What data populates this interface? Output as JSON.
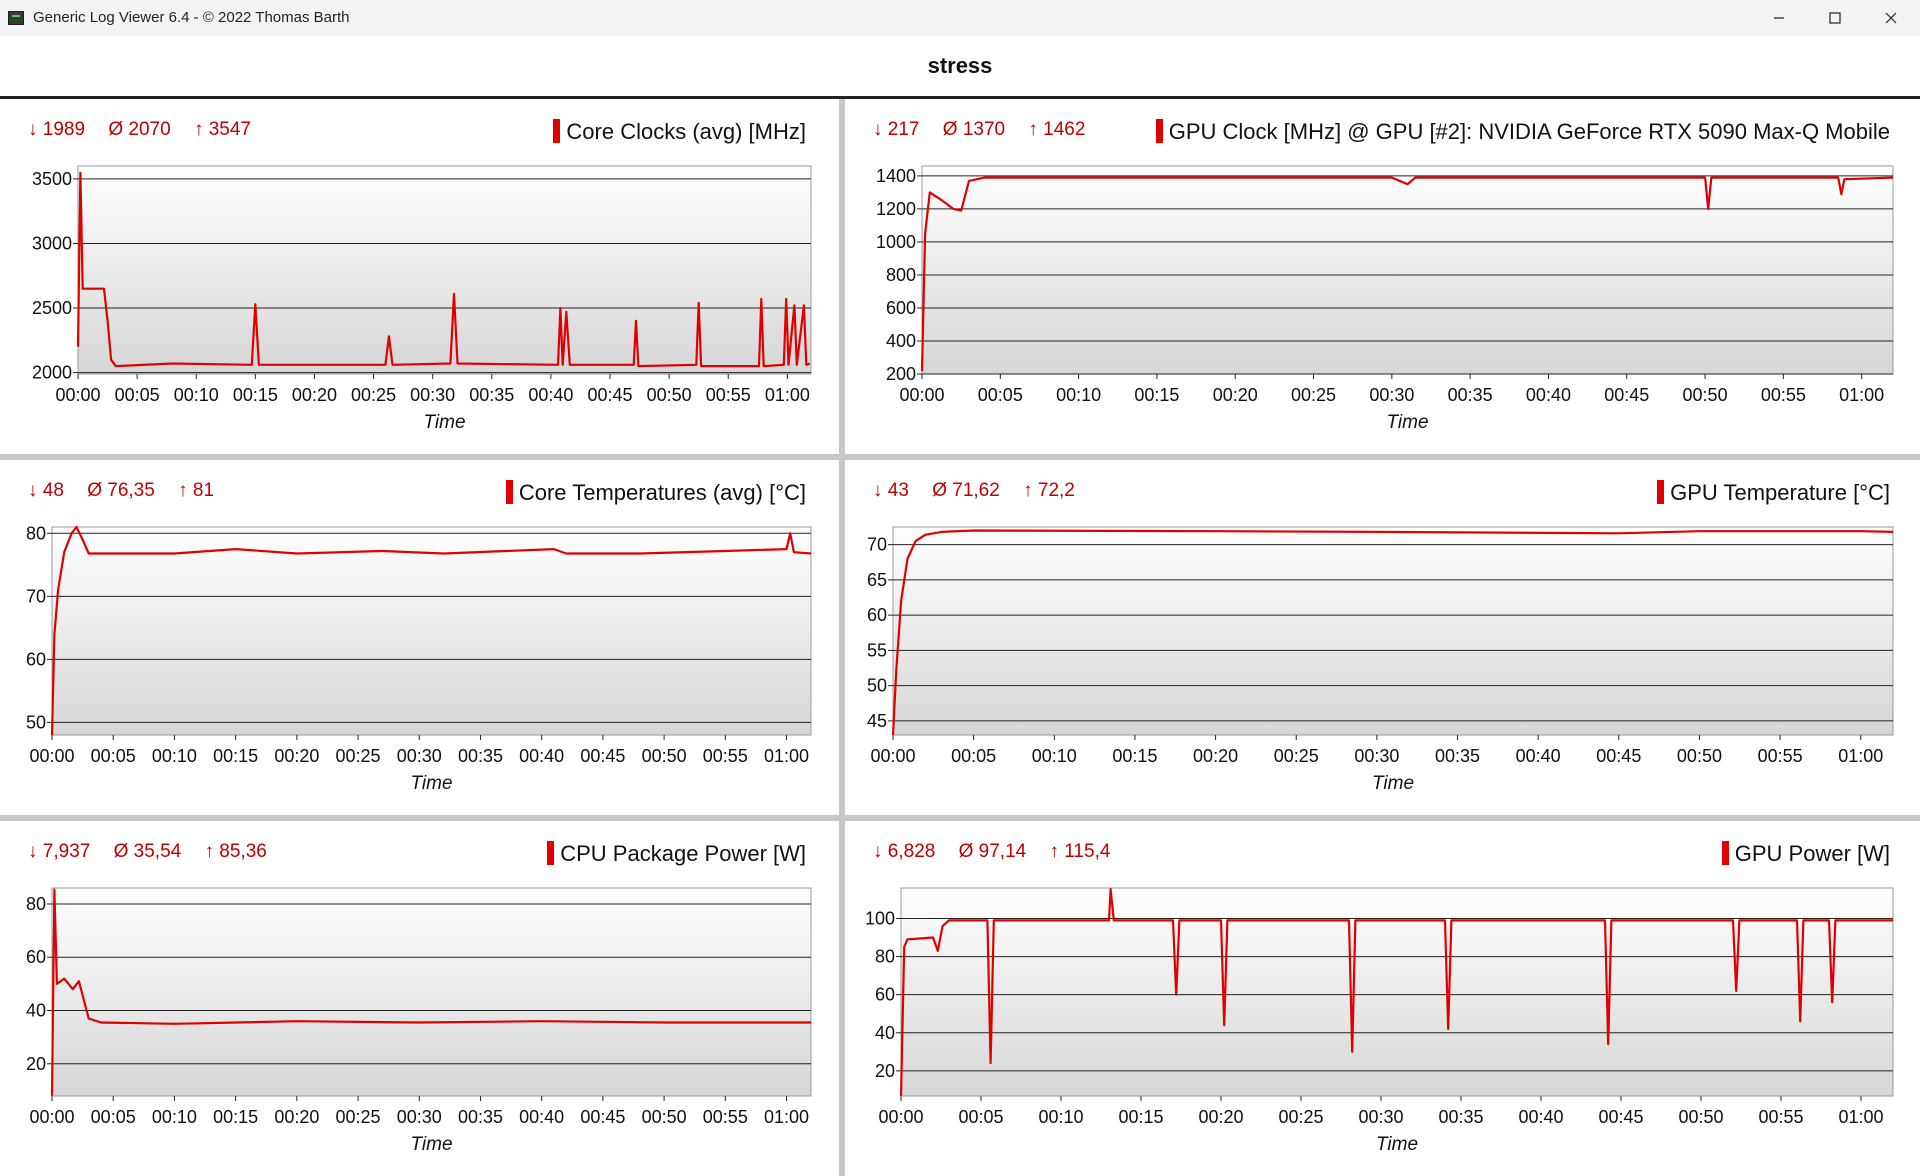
{
  "window": {
    "title": "Generic Log Viewer 6.4 - © 2022 Thomas Barth",
    "minimize_icon": "minimize-icon",
    "maximize_icon": "maximize-icon",
    "close_icon": "close-icon"
  },
  "heading": "stress",
  "panels": [
    {
      "title": "Core Clocks (avg) [MHz]",
      "stats": {
        "min": "↓ 1989",
        "avg": "Ø 2070",
        "max": "↑ 3547"
      },
      "color": "#e00000",
      "chart_data": {
        "type": "line",
        "xlabel": "Time",
        "x_ticks": [
          "00:00",
          "00:05",
          "00:10",
          "00:15",
          "00:20",
          "00:25",
          "00:30",
          "00:35",
          "00:40",
          "00:45",
          "00:50",
          "00:55",
          "01:00"
        ],
        "x_minutes": [
          0,
          5,
          10,
          15,
          20,
          25,
          30,
          35,
          40,
          45,
          50,
          55,
          60
        ],
        "xlim_minutes": [
          0,
          62
        ],
        "y_ticks": [
          2000,
          2500,
          3000,
          3500
        ],
        "ylim": [
          1989,
          3600
        ],
        "series": [
          {
            "color": "#e00000",
            "points": [
              [
                0,
                2200
              ],
              [
                0.2,
                3547
              ],
              [
                0.4,
                2650
              ],
              [
                2.2,
                2650
              ],
              [
                2.5,
                2400
              ],
              [
                2.8,
                2100
              ],
              [
                3.2,
                2050
              ],
              [
                8,
                2070
              ],
              [
                14.7,
                2060
              ],
              [
                15,
                2530
              ],
              [
                15.3,
                2060
              ],
              [
                26,
                2060
              ],
              [
                26.3,
                2280
              ],
              [
                26.6,
                2060
              ],
              [
                31.5,
                2070
              ],
              [
                31.8,
                2610
              ],
              [
                32.1,
                2070
              ],
              [
                40.6,
                2060
              ],
              [
                40.8,
                2500
              ],
              [
                41,
                2060
              ],
              [
                41.3,
                2470
              ],
              [
                41.6,
                2060
              ],
              [
                47,
                2060
              ],
              [
                47.2,
                2400
              ],
              [
                47.4,
                2050
              ],
              [
                52.3,
                2060
              ],
              [
                52.5,
                2540
              ],
              [
                52.7,
                2050
              ],
              [
                57.6,
                2050
              ],
              [
                57.8,
                2570
              ],
              [
                58,
                2050
              ],
              [
                59.7,
                2060
              ],
              [
                59.9,
                2570
              ],
              [
                60.1,
                2060
              ],
              [
                60.6,
                2520
              ],
              [
                60.8,
                2060
              ],
              [
                61.4,
                2520
              ],
              [
                61.6,
                2060
              ],
              [
                61.9,
                2070
              ]
            ]
          }
        ]
      }
    },
    {
      "title": "GPU Clock [MHz] @ GPU [#2]: NVIDIA  GeForce RTX 5090 Max-Q Mobile",
      "stats": {
        "min": "↓ 217",
        "avg": "Ø 1370",
        "max": "↑ 1462"
      },
      "color": "#e00000",
      "chart_data": {
        "type": "line",
        "xlabel": "Time",
        "x_ticks": [
          "00:00",
          "00:05",
          "00:10",
          "00:15",
          "00:20",
          "00:25",
          "00:30",
          "00:35",
          "00:40",
          "00:45",
          "00:50",
          "00:55",
          "01:00"
        ],
        "x_minutes": [
          0,
          5,
          10,
          15,
          20,
          25,
          30,
          35,
          40,
          45,
          50,
          55,
          60
        ],
        "xlim_minutes": [
          0,
          62
        ],
        "y_ticks": [
          200,
          400,
          600,
          800,
          1000,
          1200,
          1400
        ],
        "ylim": [
          200,
          1460
        ],
        "series": [
          {
            "color": "#e00000",
            "points": [
              [
                0,
                217
              ],
              [
                0.2,
                1050
              ],
              [
                0.5,
                1300
              ],
              [
                1.3,
                1250
              ],
              [
                2,
                1200
              ],
              [
                2.5,
                1190
              ],
              [
                3,
                1370
              ],
              [
                4,
                1390
              ],
              [
                30,
                1390
              ],
              [
                31,
                1350
              ],
              [
                31.5,
                1390
              ],
              [
                50,
                1390
              ],
              [
                50.2,
                1200
              ],
              [
                50.4,
                1390
              ],
              [
                58.5,
                1390
              ],
              [
                58.7,
                1290
              ],
              [
                58.9,
                1380
              ],
              [
                62,
                1390
              ]
            ]
          }
        ]
      }
    },
    {
      "title": "Core Temperatures (avg) [°C]",
      "stats": {
        "min": "↓ 48",
        "avg": "Ø 76,35",
        "max": "↑ 81"
      },
      "color": "#e00000",
      "chart_data": {
        "type": "line",
        "xlabel": "Time",
        "x_ticks": [
          "00:00",
          "00:05",
          "00:10",
          "00:15",
          "00:20",
          "00:25",
          "00:30",
          "00:35",
          "00:40",
          "00:45",
          "00:50",
          "00:55",
          "01:00"
        ],
        "x_minutes": [
          0,
          5,
          10,
          15,
          20,
          25,
          30,
          35,
          40,
          45,
          50,
          55,
          60
        ],
        "xlim_minutes": [
          0,
          62
        ],
        "y_ticks": [
          50,
          60,
          70,
          80
        ],
        "ylim": [
          48,
          81
        ],
        "series": [
          {
            "color": "#e00000",
            "points": [
              [
                0,
                48
              ],
              [
                0.2,
                64
              ],
              [
                0.5,
                71
              ],
              [
                1,
                77
              ],
              [
                1.6,
                80
              ],
              [
                2,
                81
              ],
              [
                2.5,
                79
              ],
              [
                3,
                76.8
              ],
              [
                10,
                76.8
              ],
              [
                15,
                77.5
              ],
              [
                20,
                76.8
              ],
              [
                27,
                77.2
              ],
              [
                32,
                76.8
              ],
              [
                41,
                77.5
              ],
              [
                42,
                76.8
              ],
              [
                48,
                76.8
              ],
              [
                55,
                77.2
              ],
              [
                60,
                77.5
              ],
              [
                60.3,
                80
              ],
              [
                60.6,
                77
              ],
              [
                62,
                76.8
              ]
            ]
          }
        ]
      }
    },
    {
      "title": "GPU Temperature [°C]",
      "stats": {
        "min": "↓ 43",
        "avg": "Ø 71,62",
        "max": "↑ 72,2"
      },
      "color": "#e00000",
      "chart_data": {
        "type": "line",
        "xlabel": "Time",
        "x_ticks": [
          "00:00",
          "00:05",
          "00:10",
          "00:15",
          "00:20",
          "00:25",
          "00:30",
          "00:35",
          "00:40",
          "00:45",
          "00:50",
          "00:55",
          "01:00"
        ],
        "x_minutes": [
          0,
          5,
          10,
          15,
          20,
          25,
          30,
          35,
          40,
          45,
          50,
          55,
          60
        ],
        "xlim_minutes": [
          0,
          62
        ],
        "y_ticks": [
          45,
          50,
          55,
          60,
          65,
          70
        ],
        "ylim": [
          43,
          72.5
        ],
        "series": [
          {
            "color": "#e00000",
            "points": [
              [
                0,
                43
              ],
              [
                0.2,
                52
              ],
              [
                0.5,
                62
              ],
              [
                0.9,
                68
              ],
              [
                1.4,
                70.5
              ],
              [
                2,
                71.4
              ],
              [
                3,
                71.8
              ],
              [
                5,
                72
              ],
              [
                20,
                71.9
              ],
              [
                30,
                71.8
              ],
              [
                45,
                71.6
              ],
              [
                50,
                71.9
              ],
              [
                60,
                71.9
              ],
              [
                62,
                71.8
              ]
            ]
          }
        ]
      }
    },
    {
      "title": "CPU Package Power [W]",
      "stats": {
        "min": "↓ 7,937",
        "avg": "Ø 35,54",
        "max": "↑ 85,36"
      },
      "color": "#e00000",
      "chart_data": {
        "type": "line",
        "xlabel": "Time",
        "x_ticks": [
          "00:00",
          "00:05",
          "00:10",
          "00:15",
          "00:20",
          "00:25",
          "00:30",
          "00:35",
          "00:40",
          "00:45",
          "00:50",
          "00:55",
          "01:00"
        ],
        "x_minutes": [
          0,
          5,
          10,
          15,
          20,
          25,
          30,
          35,
          40,
          45,
          50,
          55,
          60
        ],
        "xlim_minutes": [
          0,
          62
        ],
        "y_ticks": [
          20,
          40,
          60,
          80
        ],
        "ylim": [
          7.9,
          86
        ],
        "series": [
          {
            "color": "#e00000",
            "points": [
              [
                0,
                7.9
              ],
              [
                0.2,
                85.4
              ],
              [
                0.4,
                50
              ],
              [
                1,
                52
              ],
              [
                1.7,
                48
              ],
              [
                2.2,
                51
              ],
              [
                2.6,
                44
              ],
              [
                3,
                37
              ],
              [
                4,
                35.5
              ],
              [
                10,
                35
              ],
              [
                20,
                36
              ],
              [
                30,
                35.5
              ],
              [
                40,
                36
              ],
              [
                50,
                35.5
              ],
              [
                62,
                35.5
              ]
            ]
          }
        ]
      }
    },
    {
      "title": "GPU Power [W]",
      "stats": {
        "min": "↓ 6,828",
        "avg": "Ø 97,14",
        "max": "↑ 115,4"
      },
      "color": "#e00000",
      "chart_data": {
        "type": "line",
        "xlabel": "Time",
        "x_ticks": [
          "00:00",
          "00:05",
          "00:10",
          "00:15",
          "00:20",
          "00:25",
          "00:30",
          "00:35",
          "00:40",
          "00:45",
          "00:50",
          "00:55",
          "01:00"
        ],
        "x_minutes": [
          0,
          5,
          10,
          15,
          20,
          25,
          30,
          35,
          40,
          45,
          50,
          55,
          60
        ],
        "xlim_minutes": [
          0,
          62
        ],
        "y_ticks": [
          20,
          40,
          60,
          80,
          100
        ],
        "ylim": [
          6.8,
          116
        ],
        "series": [
          {
            "color": "#e00000",
            "points": [
              [
                0,
                6.8
              ],
              [
                0.2,
                85
              ],
              [
                0.4,
                89
              ],
              [
                2,
                90
              ],
              [
                2.3,
                83
              ],
              [
                2.6,
                96
              ],
              [
                3,
                99
              ],
              [
                5.4,
                99
              ],
              [
                5.6,
                24
              ],
              [
                5.8,
                99
              ],
              [
                13,
                99
              ],
              [
                13.1,
                115.4
              ],
              [
                13.3,
                99
              ],
              [
                17,
                99
              ],
              [
                17.2,
                60
              ],
              [
                17.4,
                99
              ],
              [
                20,
                99
              ],
              [
                20.2,
                44
              ],
              [
                20.4,
                99
              ],
              [
                28,
                99
              ],
              [
                28.2,
                30
              ],
              [
                28.4,
                99
              ],
              [
                34,
                99
              ],
              [
                34.2,
                42
              ],
              [
                34.4,
                99
              ],
              [
                44,
                99
              ],
              [
                44.2,
                34
              ],
              [
                44.4,
                99
              ],
              [
                52,
                99
              ],
              [
                52.2,
                62
              ],
              [
                52.4,
                99
              ],
              [
                56,
                99
              ],
              [
                56.2,
                46
              ],
              [
                56.4,
                99
              ],
              [
                58,
                99
              ],
              [
                58.2,
                56
              ],
              [
                58.4,
                99
              ],
              [
                62,
                99
              ]
            ]
          }
        ]
      }
    }
  ]
}
